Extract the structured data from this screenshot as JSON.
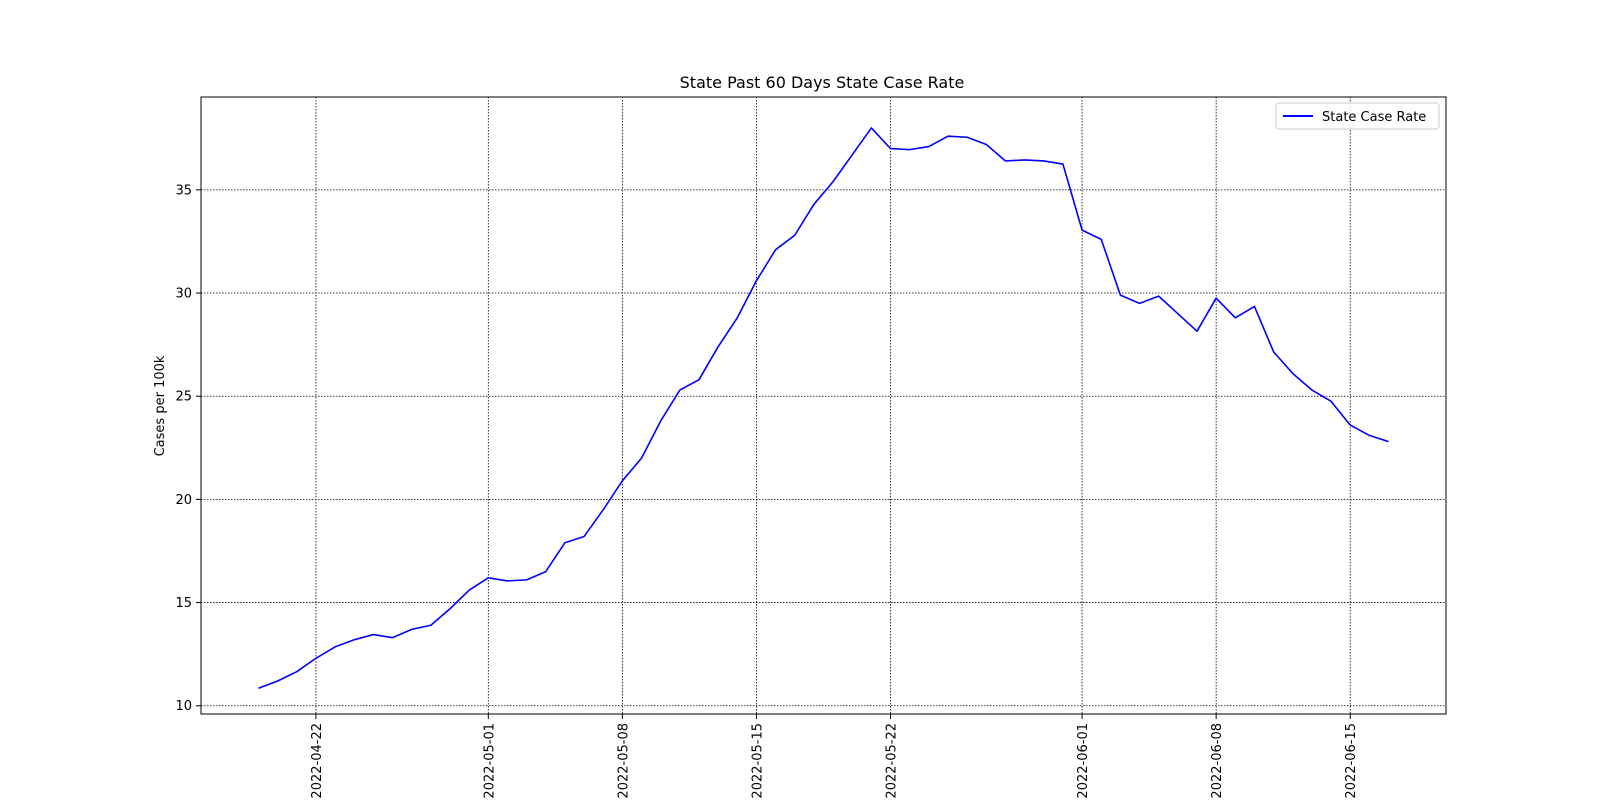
{
  "chart_data": {
    "type": "line",
    "title": "State Past  60 Days State Case Rate",
    "xlabel": "",
    "ylabel": "Cases per 100k",
    "x_axis_type": "date",
    "xlim": [
      "2022-04-16",
      "2022-06-20"
    ],
    "ylim": [
      9.6,
      39.5
    ],
    "x_ticks": [
      "2022-04-22",
      "2022-05-01",
      "2022-05-08",
      "2022-05-15",
      "2022-05-22",
      "2022-06-01",
      "2022-06-08",
      "2022-06-15"
    ],
    "y_ticks": [
      10,
      15,
      20,
      25,
      30,
      35
    ],
    "grid": true,
    "grid_style": "dotted",
    "legend_position": "top-right",
    "series": [
      {
        "name": "State Case Rate",
        "color": "#0000ff",
        "x": [
          "2022-04-19",
          "2022-04-20",
          "2022-04-21",
          "2022-04-22",
          "2022-04-23",
          "2022-04-24",
          "2022-04-25",
          "2022-04-26",
          "2022-04-27",
          "2022-04-28",
          "2022-04-29",
          "2022-04-30",
          "2022-05-01",
          "2022-05-02",
          "2022-05-03",
          "2022-05-04",
          "2022-05-05",
          "2022-05-06",
          "2022-05-07",
          "2022-05-08",
          "2022-05-09",
          "2022-05-10",
          "2022-05-11",
          "2022-05-12",
          "2022-05-13",
          "2022-05-14",
          "2022-05-15",
          "2022-05-16",
          "2022-05-17",
          "2022-05-18",
          "2022-05-19",
          "2022-05-20",
          "2022-05-21",
          "2022-05-22",
          "2022-05-23",
          "2022-05-24",
          "2022-05-25",
          "2022-05-26",
          "2022-05-27",
          "2022-05-28",
          "2022-05-29",
          "2022-05-30",
          "2022-05-31",
          "2022-06-01",
          "2022-06-02",
          "2022-06-03",
          "2022-06-04",
          "2022-06-05",
          "2022-06-06",
          "2022-06-07",
          "2022-06-08",
          "2022-06-09",
          "2022-06-10",
          "2022-06-11",
          "2022-06-12",
          "2022-06-13",
          "2022-06-14",
          "2022-06-15",
          "2022-06-16",
          "2022-06-17"
        ],
        "values": [
          10.85,
          11.2,
          11.65,
          12.3,
          12.85,
          13.2,
          13.45,
          13.3,
          13.7,
          13.9,
          14.7,
          15.6,
          16.2,
          16.05,
          16.1,
          16.5,
          17.9,
          18.2,
          19.5,
          20.9,
          22.0,
          23.8,
          25.3,
          25.8,
          27.4,
          28.8,
          30.6,
          32.1,
          32.8,
          34.3,
          35.4,
          36.7,
          38.0,
          37.0,
          36.95,
          37.1,
          37.6,
          37.55,
          37.2,
          36.4,
          36.45,
          36.4,
          36.25,
          33.05,
          32.6,
          29.9,
          29.5,
          29.85,
          29.0,
          28.15,
          29.75,
          28.8,
          29.35,
          27.15,
          26.1,
          25.3,
          24.75,
          23.6,
          23.1,
          22.8
        ]
      }
    ]
  }
}
